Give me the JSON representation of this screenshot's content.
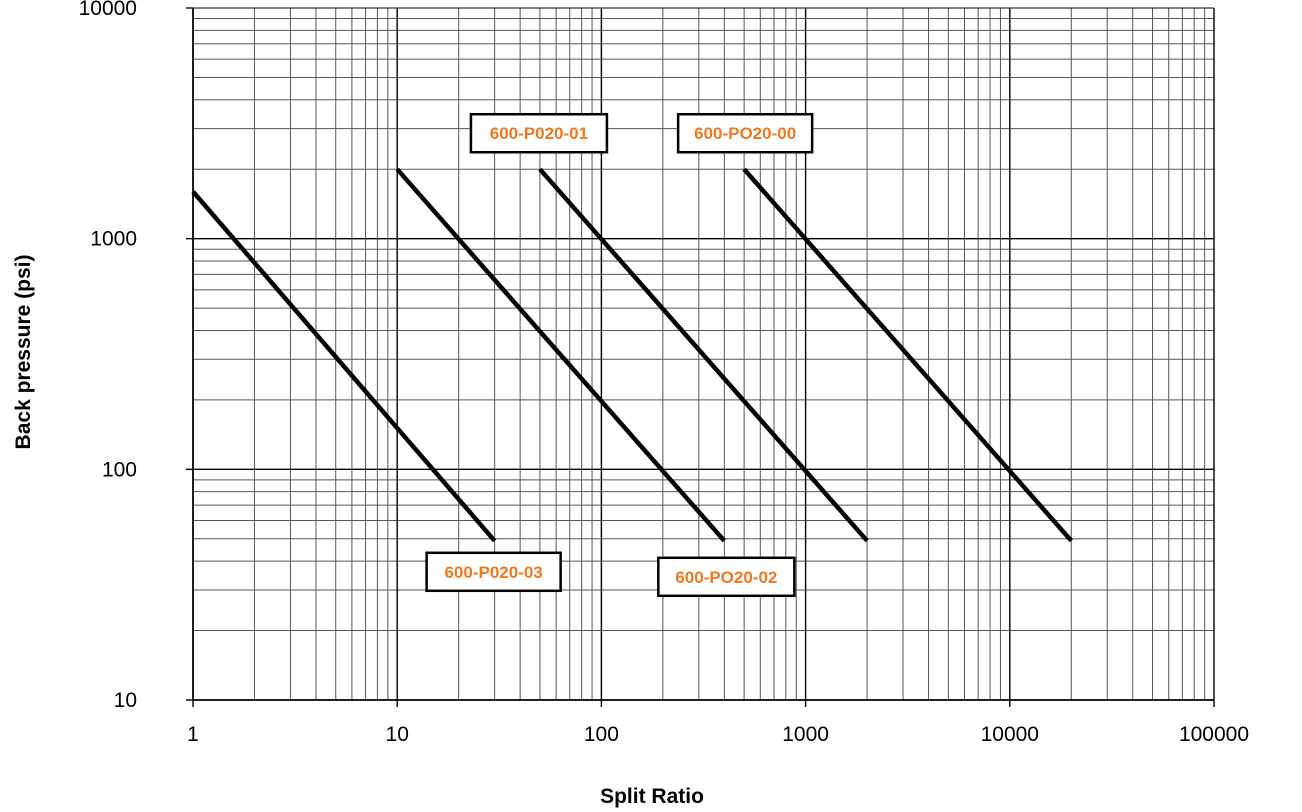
{
  "chart_data": {
    "type": "line",
    "title": "",
    "xlabel": "Split Ratio",
    "ylabel": "Back pressure (psi)",
    "x_scale": "log",
    "y_scale": "log",
    "xlim": [
      1,
      100000
    ],
    "ylim": [
      10,
      10000
    ],
    "x_ticks": [
      "1",
      "10",
      "100",
      "1000",
      "10000",
      "100000"
    ],
    "y_ticks": [
      "10",
      "100",
      "1000",
      "10000"
    ],
    "grid": true,
    "legend": "none",
    "label_color": "#f07820",
    "line_color": "#000000",
    "series": [
      {
        "name": "600-P020-03",
        "points": [
          [
            1,
            1600
          ],
          [
            30,
            49
          ]
        ]
      },
      {
        "name": "600-PO20-02",
        "points": [
          [
            10,
            2000
          ],
          [
            400,
            49
          ]
        ]
      },
      {
        "name": "600-P020-01",
        "points": [
          [
            50,
            2000
          ],
          [
            2000,
            49
          ]
        ]
      },
      {
        "name": "600-PO20-00",
        "points": [
          [
            500,
            2000
          ],
          [
            20000,
            49
          ]
        ]
      }
    ]
  }
}
